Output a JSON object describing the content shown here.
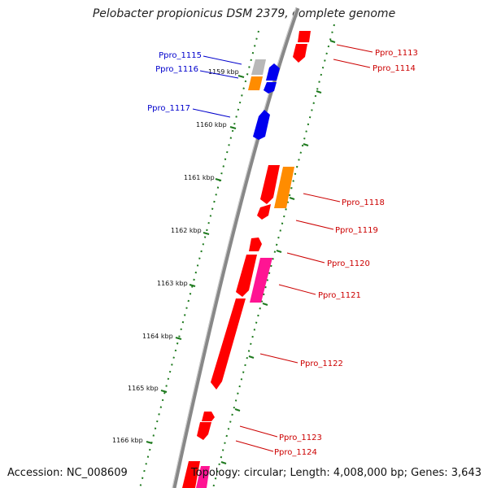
{
  "title": "Pelobacter propionicus DSM 2379, complete genome",
  "footer": {
    "accession": "Accession: NC_008609",
    "summary": "Topology: circular; Length: 4,008,000 bp; Genes: 3,643"
  },
  "colors": {
    "backbone": "#888888",
    "tick": "#1e7a1e",
    "label_left": "#0000cc",
    "label_right": "#cc0000",
    "gene_red": "#ff0000",
    "gene_blue": "#0000ee",
    "gene_orange": "#ff8c00",
    "gene_gray": "#b8b8b8",
    "gene_pink": "#ff1493"
  },
  "scale_labels": [
    "1159 kbp",
    "1160 kbp",
    "1161 kbp",
    "1162 kbp",
    "1163 kbp",
    "1164 kbp",
    "1165 kbp",
    "1166 kbp"
  ],
  "gene_labels_left": [
    "Ppro_1115",
    "Ppro_1116",
    "Ppro_1117"
  ],
  "gene_labels_right": [
    "Ppro_1113",
    "Ppro_1114",
    "Ppro_1118",
    "Ppro_1119",
    "Ppro_1120",
    "Ppro_1121",
    "Ppro_1122",
    "Ppro_1123",
    "Ppro_1124"
  ]
}
